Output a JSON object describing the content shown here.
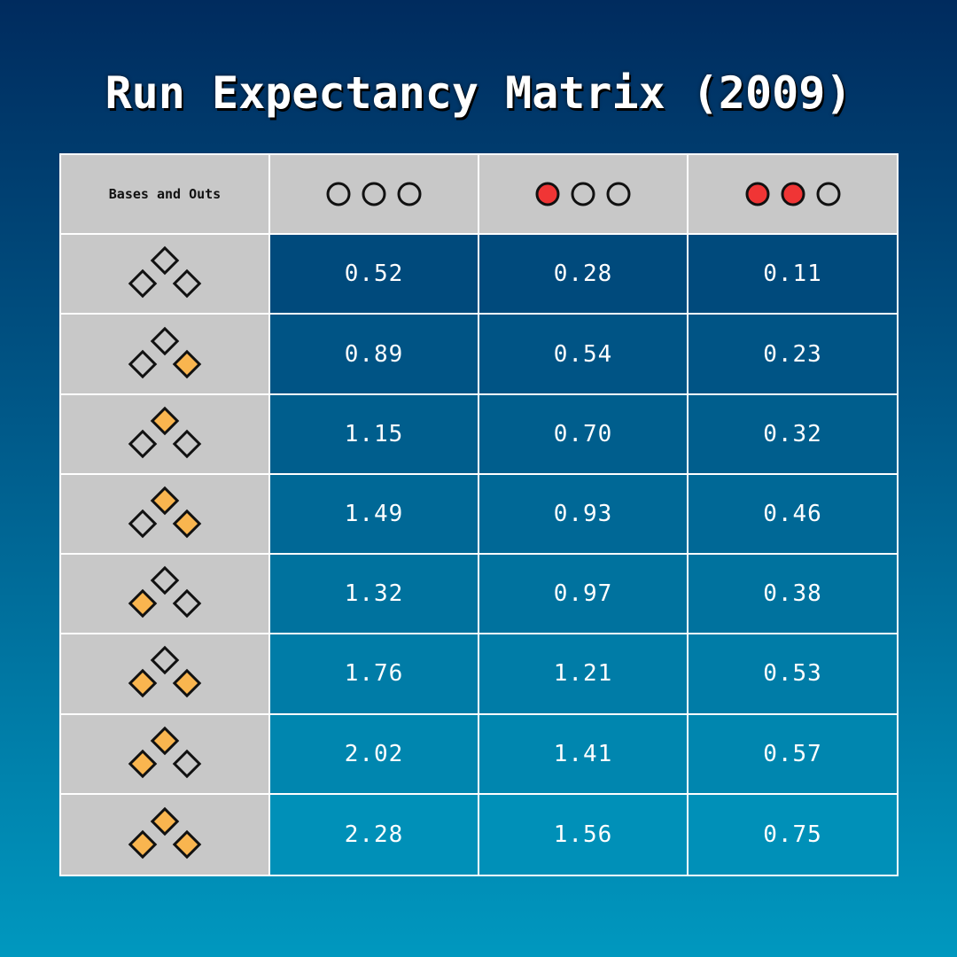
{
  "title": "Run Expectancy Matrix (2009)",
  "colors": {
    "occupied_base": "#f9b54f",
    "out_marker": "#f03535",
    "empty_fill": "#c8c8c8",
    "grid_line": "#ffffff",
    "row_label_bg": "#c8c8c8",
    "value_bg_top": "#004a7c",
    "value_bg_bottom": "#0090b8"
  },
  "chart_data": {
    "type": "table",
    "title": "Run Expectancy Matrix (2009)",
    "corner_label": "Bases and Outs",
    "columns": [
      {
        "outs": 0,
        "icon": "outs-indicator-icon"
      },
      {
        "outs": 1,
        "icon": "outs-indicator-icon"
      },
      {
        "outs": 2,
        "icon": "outs-indicator-icon"
      }
    ],
    "rows": [
      {
        "bases": {
          "first": false,
          "second": false,
          "third": false
        },
        "values": [
          "0.52",
          "0.28",
          "0.11"
        ]
      },
      {
        "bases": {
          "first": true,
          "second": false,
          "third": false
        },
        "values": [
          "0.89",
          "0.54",
          "0.23"
        ]
      },
      {
        "bases": {
          "first": false,
          "second": true,
          "third": false
        },
        "values": [
          "1.15",
          "0.70",
          "0.32"
        ]
      },
      {
        "bases": {
          "first": true,
          "second": true,
          "third": false
        },
        "values": [
          "1.49",
          "0.93",
          "0.46"
        ]
      },
      {
        "bases": {
          "first": false,
          "second": false,
          "third": true
        },
        "values": [
          "1.32",
          "0.97",
          "0.38"
        ]
      },
      {
        "bases": {
          "first": true,
          "second": false,
          "third": true
        },
        "values": [
          "1.76",
          "1.21",
          "0.53"
        ]
      },
      {
        "bases": {
          "first": false,
          "second": true,
          "third": true
        },
        "values": [
          "2.02",
          "1.41",
          "0.57"
        ]
      },
      {
        "bases": {
          "first": true,
          "second": true,
          "third": true
        },
        "values": [
          "2.28",
          "1.56",
          "0.75"
        ]
      }
    ]
  }
}
